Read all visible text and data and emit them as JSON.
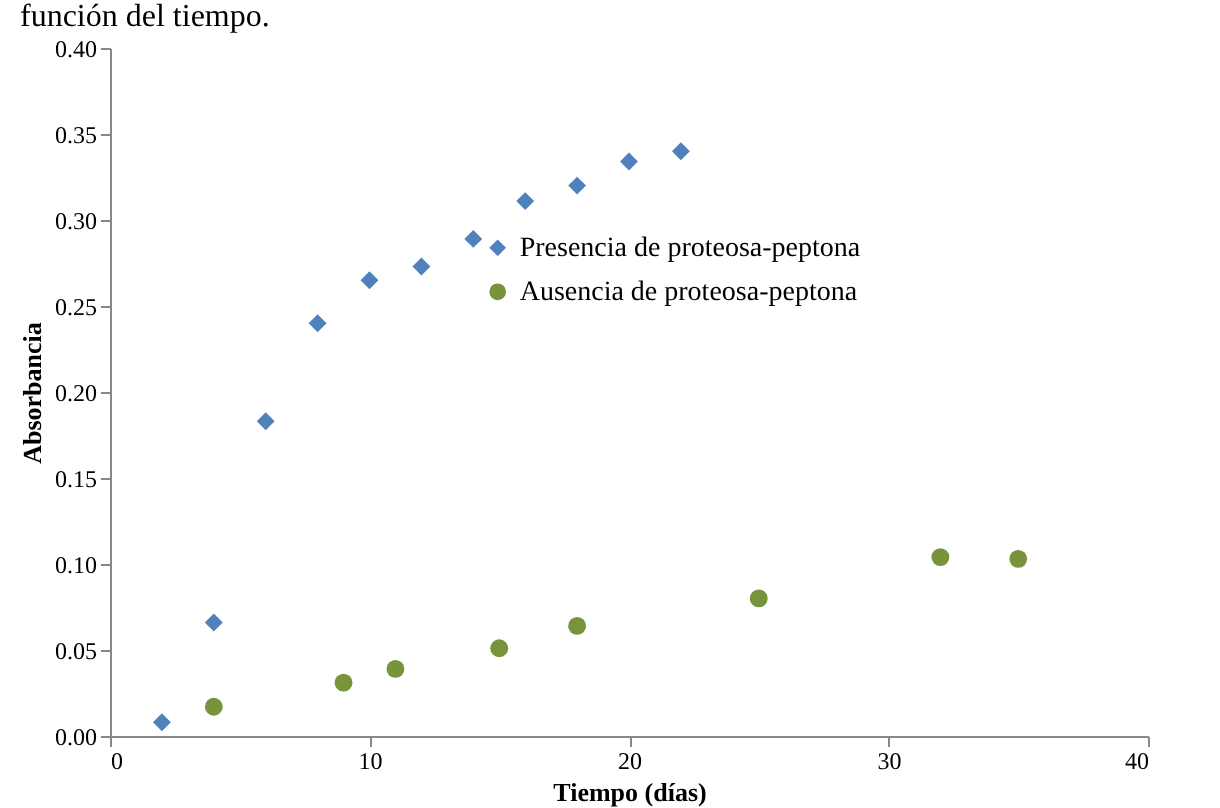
{
  "chart_data": {
    "type": "scatter",
    "title": "función del tiempo.",
    "xlabel": "Tiempo (días)",
    "ylabel": "Absorbancia",
    "xlim": [
      0,
      40
    ],
    "xticks": [
      0,
      10,
      20,
      30,
      40
    ],
    "ylim": [
      0,
      0.4
    ],
    "yticks": [
      {
        "value": 0,
        "label": "0.00"
      },
      0.05,
      {
        "value": 0.1,
        "label": "0.10"
      },
      0.15,
      {
        "value": 0.2,
        "label": "0.20"
      },
      0.25,
      {
        "value": 0.3,
        "label": "0.30"
      },
      0.35,
      {
        "value": 0.4,
        "label": "0.40"
      }
    ],
    "grid": false,
    "legend": "right",
    "series": [
      {
        "name": "Presencia de proteosa-peptona",
        "color": "#4f81bd",
        "marker": "diamond",
        "x": [
          2,
          4,
          6,
          8,
          10,
          12,
          14,
          16,
          18,
          20,
          22
        ],
        "values": [
          0.008,
          0.066,
          0.183,
          0.24,
          0.265,
          0.273,
          0.289,
          0.311,
          0.32,
          0.334,
          0.34
        ]
      },
      {
        "name": "Ausencia de proteosa-peptona",
        "color": "#77933c",
        "marker": "circle",
        "x": [
          4,
          9,
          11,
          15,
          18,
          25,
          32,
          35
        ],
        "values": [
          0.017,
          0.031,
          0.039,
          0.051,
          0.064,
          0.08,
          0.104,
          0.103
        ]
      }
    ]
  }
}
